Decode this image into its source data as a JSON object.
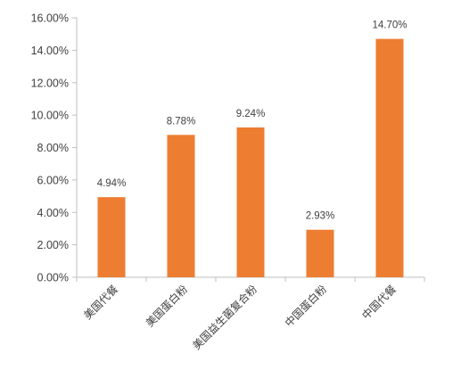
{
  "chart_data": {
    "type": "bar",
    "categories": [
      "美国代餐",
      "美国蛋白粉",
      "美国益生菌复合粉",
      "中国蛋白粉",
      "中国代餐"
    ],
    "values": [
      4.94,
      8.78,
      9.24,
      2.93,
      14.7
    ],
    "data_labels": [
      "4.94%",
      "8.78%",
      "9.24%",
      "2.93%",
      "14.70%"
    ],
    "y_ticks": [
      0,
      2,
      4,
      6,
      8,
      10,
      12,
      14,
      16
    ],
    "y_tick_labels": [
      "0.00%",
      "2.00%",
      "4.00%",
      "6.00%",
      "8.00%",
      "10.00%",
      "12.00%",
      "14.00%",
      "16.00%"
    ],
    "ylim": [
      0,
      16
    ],
    "title": "",
    "xlabel": "",
    "ylabel": "",
    "grid": false,
    "legend": "none",
    "bar_color": "#ED7D31",
    "axis_color": "#BFBFBF"
  }
}
